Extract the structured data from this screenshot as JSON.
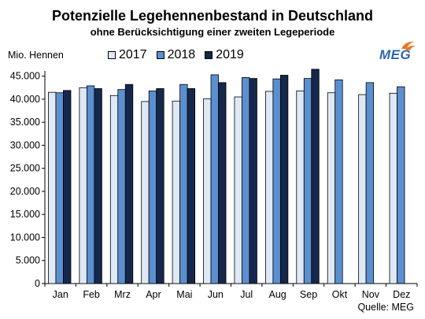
{
  "title": "Potenzielle Legehennenbestand in Deutschland",
  "subtitle": "ohne Berücksichtigung einer zweiten Legeperiode",
  "logo": {
    "text": "MEG",
    "icon": "meg-flame-logo",
    "colors": {
      "text": "#2f66b0",
      "flame": "#e87722"
    }
  },
  "source": "Quelle: MEG",
  "colors": {
    "2017": "#dfe9f6",
    "2018": "#5b8fd0",
    "2019": "#15274a"
  },
  "chart_data": {
    "type": "bar",
    "categories": [
      "Jan",
      "Feb",
      "Mrz",
      "Apr",
      "Mai",
      "Jun",
      "Jul",
      "Aug",
      "Sep",
      "Okt",
      "Nov",
      "Dez"
    ],
    "series": [
      {
        "name": "2017",
        "values": [
          41500,
          42500,
          40800,
          39500,
          39600,
          40100,
          40500,
          41700,
          41800,
          41400,
          41000,
          41300
        ]
      },
      {
        "name": "2018",
        "values": [
          41400,
          42900,
          42100,
          41800,
          43200,
          45300,
          44700,
          44400,
          44500,
          44200,
          43600,
          42700
        ]
      },
      {
        "name": "2019",
        "values": [
          41900,
          42300,
          43200,
          42300,
          42300,
          43600,
          44500,
          45200,
          46500,
          null,
          null,
          null
        ]
      }
    ],
    "ylabel": "Mio. Hennen",
    "xlabel": "",
    "ylim": [
      0,
      45000
    ],
    "yticks": [
      0,
      5000,
      10000,
      15000,
      20000,
      25000,
      30000,
      35000,
      40000,
      45000
    ],
    "ytick_labels": [
      "0",
      "5.000",
      "10.000",
      "15.000",
      "20.000",
      "25.000",
      "30.000",
      "35.000",
      "40.000",
      "45.000"
    ],
    "grid": false,
    "legend": "top"
  }
}
